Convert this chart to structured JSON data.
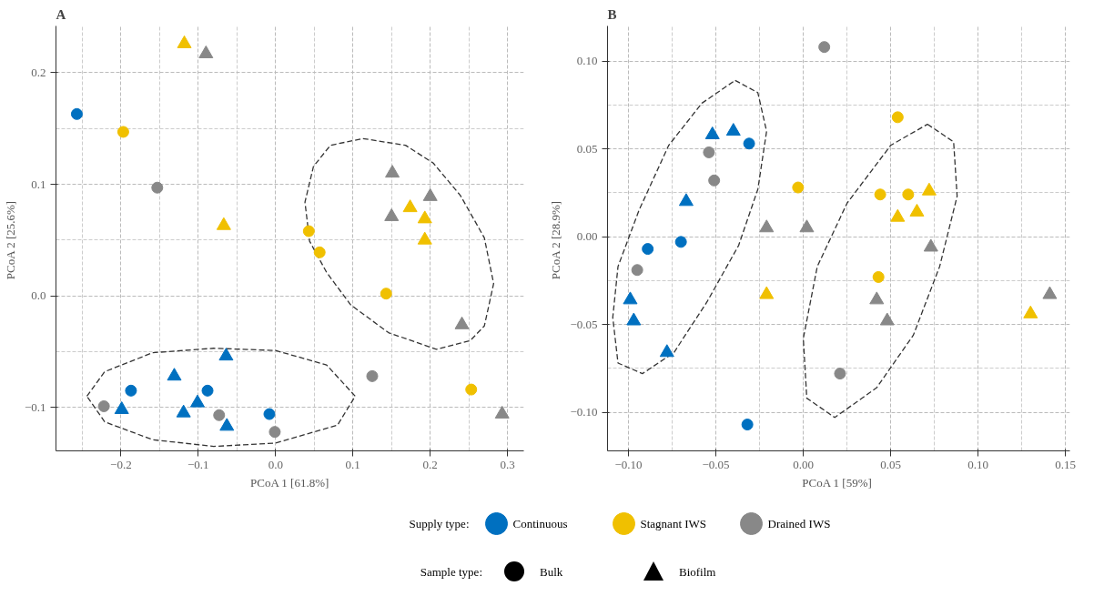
{
  "chart_data": [
    {
      "type": "scatter",
      "title": "A",
      "xlabel": "PCoA 1 [61.8%]",
      "ylabel": "PCoA 2  [25.6%]",
      "xlim": [
        -0.284,
        0.321
      ],
      "ylim": [
        -0.139,
        0.242
      ],
      "xticks": [
        {
          "value": -0.2,
          "label": "−0.2"
        },
        {
          "value": -0.1,
          "label": "−0.1"
        },
        {
          "value": 0,
          "label": "0.0"
        },
        0.1,
        0.2,
        0.3
      ],
      "yticks": [
        {
          "value": -0.1,
          "label": "−0.1"
        },
        {
          "value": 0,
          "label": "0.0"
        },
        0.1,
        0.2
      ],
      "grid": true,
      "legend": "bottom",
      "legend_title": "Supply type:",
      "annotations": [
        "Sample type:",
        "Bulk",
        "Biofilm"
      ],
      "series": [
        {
          "name": "Continuous",
          "color": "#0070c0",
          "marker": "circle",
          "x": [
            -0.257,
            -0.187,
            -0.088,
            -0.008
          ],
          "values": [
            0.163,
            -0.085,
            -0.085,
            -0.106
          ]
        },
        {
          "name": "Stagnant IWS",
          "color": "#f0c000",
          "marker": "circle",
          "x": [
            -0.197,
            0.043,
            0.057,
            0.143,
            0.253
          ],
          "values": [
            0.147,
            0.058,
            0.039,
            0.002,
            -0.084
          ]
        },
        {
          "name": "Drained IWS",
          "color": "#888888",
          "marker": "circle",
          "x": [
            -0.153,
            -0.222,
            -0.073,
            -0.001,
            0.125
          ],
          "values": [
            0.097,
            -0.099,
            -0.107,
            -0.122,
            -0.072
          ]
        },
        {
          "color": "#0070c0",
          "marker": "triangle",
          "x": [
            -0.064,
            -0.131,
            -0.199,
            -0.119,
            -0.101,
            -0.063
          ],
          "values": [
            -0.054,
            -0.072,
            -0.102,
            -0.105,
            -0.096,
            -0.117
          ]
        },
        {
          "color": "#f0c000",
          "marker": "triangle",
          "x": [
            -0.118,
            -0.067,
            0.174,
            0.193,
            0.193
          ],
          "values": [
            0.226,
            0.063,
            0.079,
            0.069,
            0.05
          ]
        },
        {
          "color": "#888888",
          "marker": "triangle",
          "x": [
            -0.09,
            0.151,
            0.15,
            0.2,
            0.241,
            0.293
          ],
          "values": [
            0.217,
            0.11,
            0.071,
            0.089,
            -0.026,
            -0.106
          ]
        }
      ]
    },
    {
      "type": "scatter",
      "title": "B",
      "xlabel": "PCoA 1  [59%]",
      "ylabel": "PCoA 2  [28.9%]",
      "xlim": [
        -0.112,
        0.1525
      ],
      "ylim": [
        -0.122,
        0.12
      ],
      "xticks": [
        {
          "value": -0.1,
          "label": "−0.10"
        },
        {
          "value": -0.05,
          "label": "−0.05"
        },
        {
          "value": 0,
          "label": "0.00"
        },
        0.05,
        {
          "value": 0.1,
          "label": "0.10"
        },
        0.15
      ],
      "yticks": [
        {
          "value": -0.1,
          "label": "−0.10"
        },
        {
          "value": -0.05,
          "label": "−0.05"
        },
        {
          "value": 0,
          "label": "0.00"
        },
        0.05,
        {
          "value": 0.1,
          "label": "0.10"
        }
      ],
      "grid": true,
      "series": [
        {
          "color": "#0070c0",
          "marker": "circle",
          "x": [
            -0.031,
            -0.089,
            -0.07,
            -0.032
          ],
          "values": [
            0.053,
            -0.007,
            -0.003,
            -0.107
          ]
        },
        {
          "color": "#f0c000",
          "marker": "circle",
          "x": [
            0.054,
            -0.003,
            0.044,
            0.06,
            0.043
          ],
          "values": [
            0.068,
            0.028,
            0.024,
            0.024,
            -0.023
          ]
        },
        {
          "color": "#888888",
          "marker": "circle",
          "x": [
            0.012,
            -0.054,
            -0.051,
            -0.095,
            0.021
          ],
          "values": [
            0.108,
            0.048,
            0.032,
            -0.019,
            -0.078
          ]
        },
        {
          "color": "#0070c0",
          "marker": "triangle",
          "x": [
            -0.052,
            -0.04,
            -0.067,
            -0.099,
            -0.097,
            -0.078
          ],
          "values": [
            0.058,
            0.06,
            0.02,
            -0.036,
            -0.048,
            -0.066
          ]
        },
        {
          "color": "#f0c000",
          "marker": "triangle",
          "x": [
            -0.021,
            0.054,
            0.065,
            0.072,
            0.13
          ],
          "values": [
            -0.033,
            0.011,
            0.014,
            0.026,
            -0.044
          ]
        },
        {
          "color": "#888888",
          "marker": "triangle",
          "x": [
            -0.021,
            0.002,
            0.042,
            0.048,
            0.073,
            0.141
          ],
          "values": [
            0.005,
            0.005,
            -0.036,
            -0.048,
            -0.006,
            -0.033
          ]
        }
      ]
    }
  ]
}
